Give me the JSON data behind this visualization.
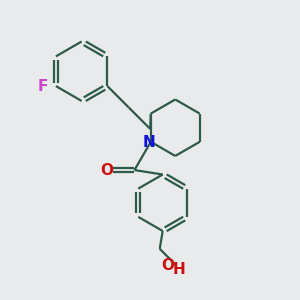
{
  "bg_color": "#e8eaec",
  "bond_color": "#2d5a4a",
  "N_color": "#1010dd",
  "O_color": "#cc1010",
  "F_color": "#cc44cc",
  "OH_color": "#cc1010",
  "line_width": 1.6,
  "font_size_atom": 10,
  "fig_size": [
    3.0,
    3.0
  ],
  "dpi": 100,
  "xlim": [
    0,
    10
  ],
  "ylim": [
    0,
    10
  ]
}
